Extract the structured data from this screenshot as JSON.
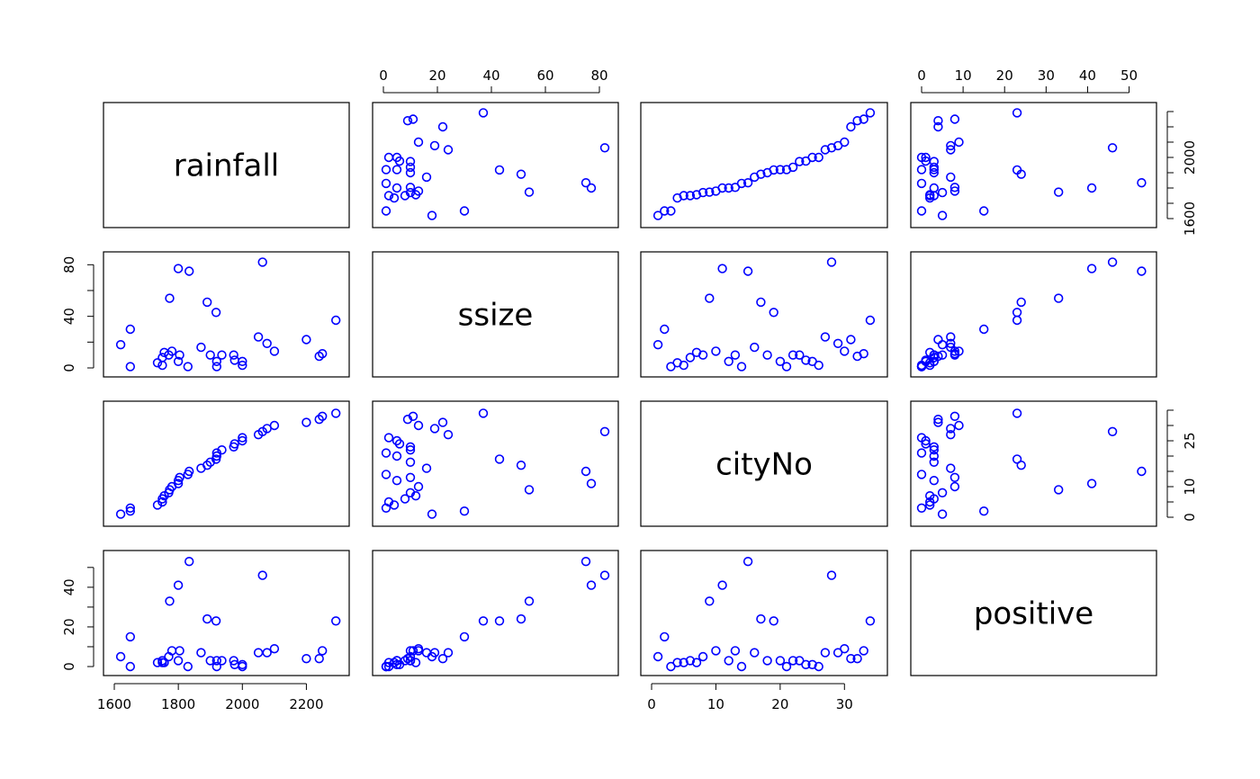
{
  "chart_data": {
    "type": "scatter",
    "title": "",
    "variables": [
      {
        "name": "rainfall",
        "ticks": [
          1600,
          1800,
          2000,
          2200
        ],
        "range": [
          1600,
          2300
        ]
      },
      {
        "name": "ssize",
        "ticks": [
          0,
          20,
          40,
          60,
          80
        ],
        "range": [
          0,
          83
        ]
      },
      {
        "name": "cityNo",
        "ticks": [
          0,
          10,
          20,
          30
        ],
        "range": [
          0,
          35
        ]
      },
      {
        "name": "positive",
        "ticks": [
          0,
          10,
          20,
          30,
          40,
          50
        ],
        "range": [
          0,
          54
        ]
      }
    ],
    "tick_labels": {
      "rainfall": [
        "1600",
        "1800",
        "2000",
        "2200"
      ],
      "ssize_left": [
        "0",
        "40",
        "80"
      ],
      "ssize_top": [
        "0",
        "20",
        "40",
        "60",
        "80"
      ],
      "cityNo_bottom": [
        "0",
        "10",
        "20",
        "30"
      ],
      "cityNo_right": [
        "0",
        "10",
        "25"
      ],
      "positive_left": [
        "0",
        "20",
        "40"
      ],
      "positive_top": [
        "0",
        "10",
        "20",
        "30",
        "40",
        "50"
      ],
      "rainfall_right": [
        "1600",
        "2000"
      ]
    },
    "records": [
      {
        "rainfall": 1620,
        "ssize": 18,
        "cityNo": 1,
        "positive": 5
      },
      {
        "rainfall": 1650,
        "ssize": 1,
        "cityNo": 3,
        "positive": 0
      },
      {
        "rainfall": 1650,
        "ssize": 30,
        "cityNo": 2,
        "positive": 15
      },
      {
        "rainfall": 1735,
        "ssize": 4,
        "cityNo": 4,
        "positive": 2
      },
      {
        "rainfall": 1750,
        "ssize": 2,
        "cityNo": 5,
        "positive": 2
      },
      {
        "rainfall": 1750,
        "ssize": 8,
        "cityNo": 6,
        "positive": 3
      },
      {
        "rainfall": 1756,
        "ssize": 12,
        "cityNo": 7,
        "positive": 2
      },
      {
        "rainfall": 1770,
        "ssize": 10,
        "cityNo": 8,
        "positive": 5
      },
      {
        "rainfall": 1773,
        "ssize": 54,
        "cityNo": 9,
        "positive": 33
      },
      {
        "rainfall": 1780,
        "ssize": 13,
        "cityNo": 10,
        "positive": 8
      },
      {
        "rainfall": 1800,
        "ssize": 77,
        "cityNo": 11,
        "positive": 41
      },
      {
        "rainfall": 1800,
        "ssize": 5,
        "cityNo": 12,
        "positive": 3
      },
      {
        "rainfall": 1804,
        "ssize": 10,
        "cityNo": 13,
        "positive": 8
      },
      {
        "rainfall": 1830,
        "ssize": 1,
        "cityNo": 14,
        "positive": 0
      },
      {
        "rainfall": 1834,
        "ssize": 75,
        "cityNo": 15,
        "positive": 53
      },
      {
        "rainfall": 1871,
        "ssize": 16,
        "cityNo": 16,
        "positive": 7
      },
      {
        "rainfall": 1890,
        "ssize": 51,
        "cityNo": 17,
        "positive": 24
      },
      {
        "rainfall": 1900,
        "ssize": 10,
        "cityNo": 18,
        "positive": 3
      },
      {
        "rainfall": 1918,
        "ssize": 43,
        "cityNo": 19,
        "positive": 23
      },
      {
        "rainfall": 1920,
        "ssize": 5,
        "cityNo": 20,
        "positive": 3
      },
      {
        "rainfall": 1920,
        "ssize": 1,
        "cityNo": 21,
        "positive": 0
      },
      {
        "rainfall": 1936,
        "ssize": 10,
        "cityNo": 22,
        "positive": 3
      },
      {
        "rainfall": 1973,
        "ssize": 10,
        "cityNo": 23,
        "positive": 3
      },
      {
        "rainfall": 1976,
        "ssize": 6,
        "cityNo": 24,
        "positive": 1
      },
      {
        "rainfall": 2000,
        "ssize": 5,
        "cityNo": 25,
        "positive": 1
      },
      {
        "rainfall": 2000,
        "ssize": 2,
        "cityNo": 26,
        "positive": 0
      },
      {
        "rainfall": 2050,
        "ssize": 24,
        "cityNo": 27,
        "positive": 7
      },
      {
        "rainfall": 2063,
        "ssize": 82,
        "cityNo": 28,
        "positive": 46
      },
      {
        "rainfall": 2077,
        "ssize": 19,
        "cityNo": 29,
        "positive": 7
      },
      {
        "rainfall": 2100,
        "ssize": 13,
        "cityNo": 30,
        "positive": 9
      },
      {
        "rainfall": 2200,
        "ssize": 22,
        "cityNo": 31,
        "positive": 4
      },
      {
        "rainfall": 2240,
        "ssize": 9,
        "cityNo": 32,
        "positive": 4
      },
      {
        "rainfall": 2250,
        "ssize": 11,
        "cityNo": 33,
        "positive": 8
      },
      {
        "rainfall": 2292,
        "ssize": 37,
        "cityNo": 34,
        "positive": 23
      }
    ],
    "marker_color": "#0000ff",
    "grid": false
  }
}
